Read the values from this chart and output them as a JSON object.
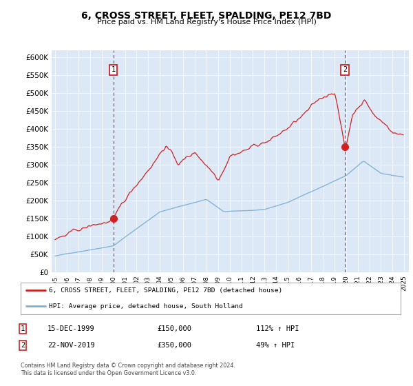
{
  "title": "6, CROSS STREET, FLEET, SPALDING, PE12 7BD",
  "subtitle": "Price paid vs. HM Land Registry's House Price Index (HPI)",
  "ylim": [
    0,
    620000
  ],
  "yticks": [
    0,
    50000,
    100000,
    150000,
    200000,
    250000,
    300000,
    350000,
    400000,
    450000,
    500000,
    550000,
    600000
  ],
  "ytick_labels": [
    "£0",
    "£50K",
    "£100K",
    "£150K",
    "£200K",
    "£250K",
    "£300K",
    "£350K",
    "£400K",
    "£450K",
    "£500K",
    "£550K",
    "£600K"
  ],
  "plot_bg_color": "#dce8f5",
  "grid_color": "#ffffff",
  "red_color": "#cc2222",
  "blue_color": "#7bafd4",
  "sale1_price": 150000,
  "sale1_year": 2000.0,
  "sale2_price": 350000,
  "sale2_year": 2019.9,
  "sale1_date": "15-DEC-1999",
  "sale1_hpi_pct": "112% ↑ HPI",
  "sale2_date": "22-NOV-2019",
  "sale2_hpi_pct": "49% ↑ HPI",
  "legend_line1": "6, CROSS STREET, FLEET, SPALDING, PE12 7BD (detached house)",
  "legend_line2": "HPI: Average price, detached house, South Holland",
  "footer": "Contains HM Land Registry data © Crown copyright and database right 2024.\nThis data is licensed under the Open Government Licence v3.0."
}
